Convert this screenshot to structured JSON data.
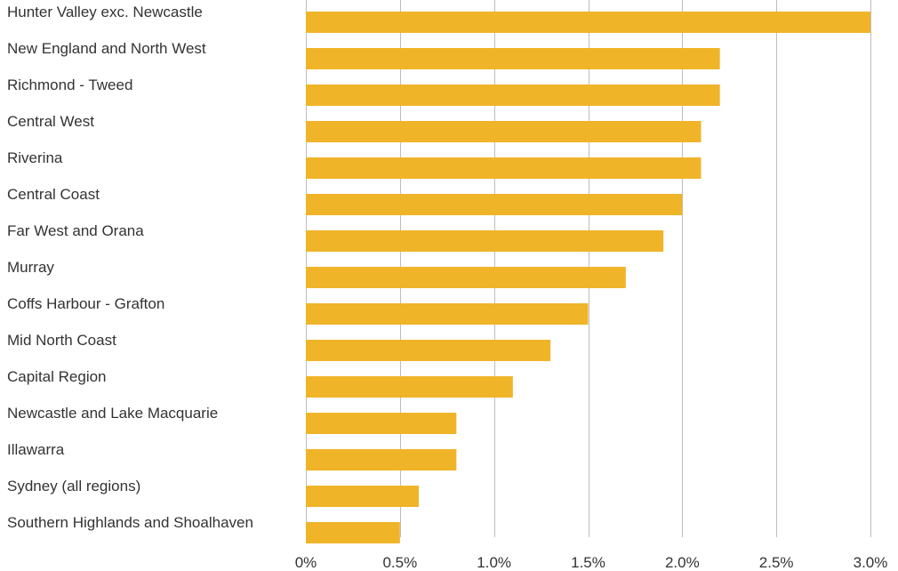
{
  "colors": {
    "bar": "#F0B429",
    "gridline": "#bdbdbd",
    "text": "#333333",
    "background": "#ffffff"
  },
  "chart_data": {
    "type": "bar",
    "orientation": "horizontal",
    "categories": [
      "Hunter Valley exc. Newcastle",
      "New England and North West",
      "Richmond - Tweed",
      "Central West",
      "Riverina",
      "Central Coast",
      "Far West and Orana",
      "Murray",
      "Coffs Harbour - Grafton",
      "Mid North Coast",
      "Capital Region",
      "Newcastle and Lake Macquarie",
      "Illawarra",
      "Sydney (all regions)",
      "Southern Highlands and Shoalhaven"
    ],
    "values": [
      3.0,
      2.2,
      2.2,
      2.1,
      2.1,
      2.0,
      1.9,
      1.7,
      1.5,
      1.3,
      1.1,
      0.8,
      0.8,
      0.6,
      0.5
    ],
    "x_ticks": [
      0,
      0.5,
      1.0,
      1.5,
      2.0,
      2.5,
      3.0
    ],
    "x_tick_labels": [
      "0%",
      "0.5%",
      "1.0%",
      "1.5%",
      "2.0%",
      "2.5%",
      "3.0%"
    ],
    "xlim": [
      0,
      3.0
    ],
    "grid": true,
    "title": "",
    "xlabel": "",
    "ylabel": ""
  }
}
